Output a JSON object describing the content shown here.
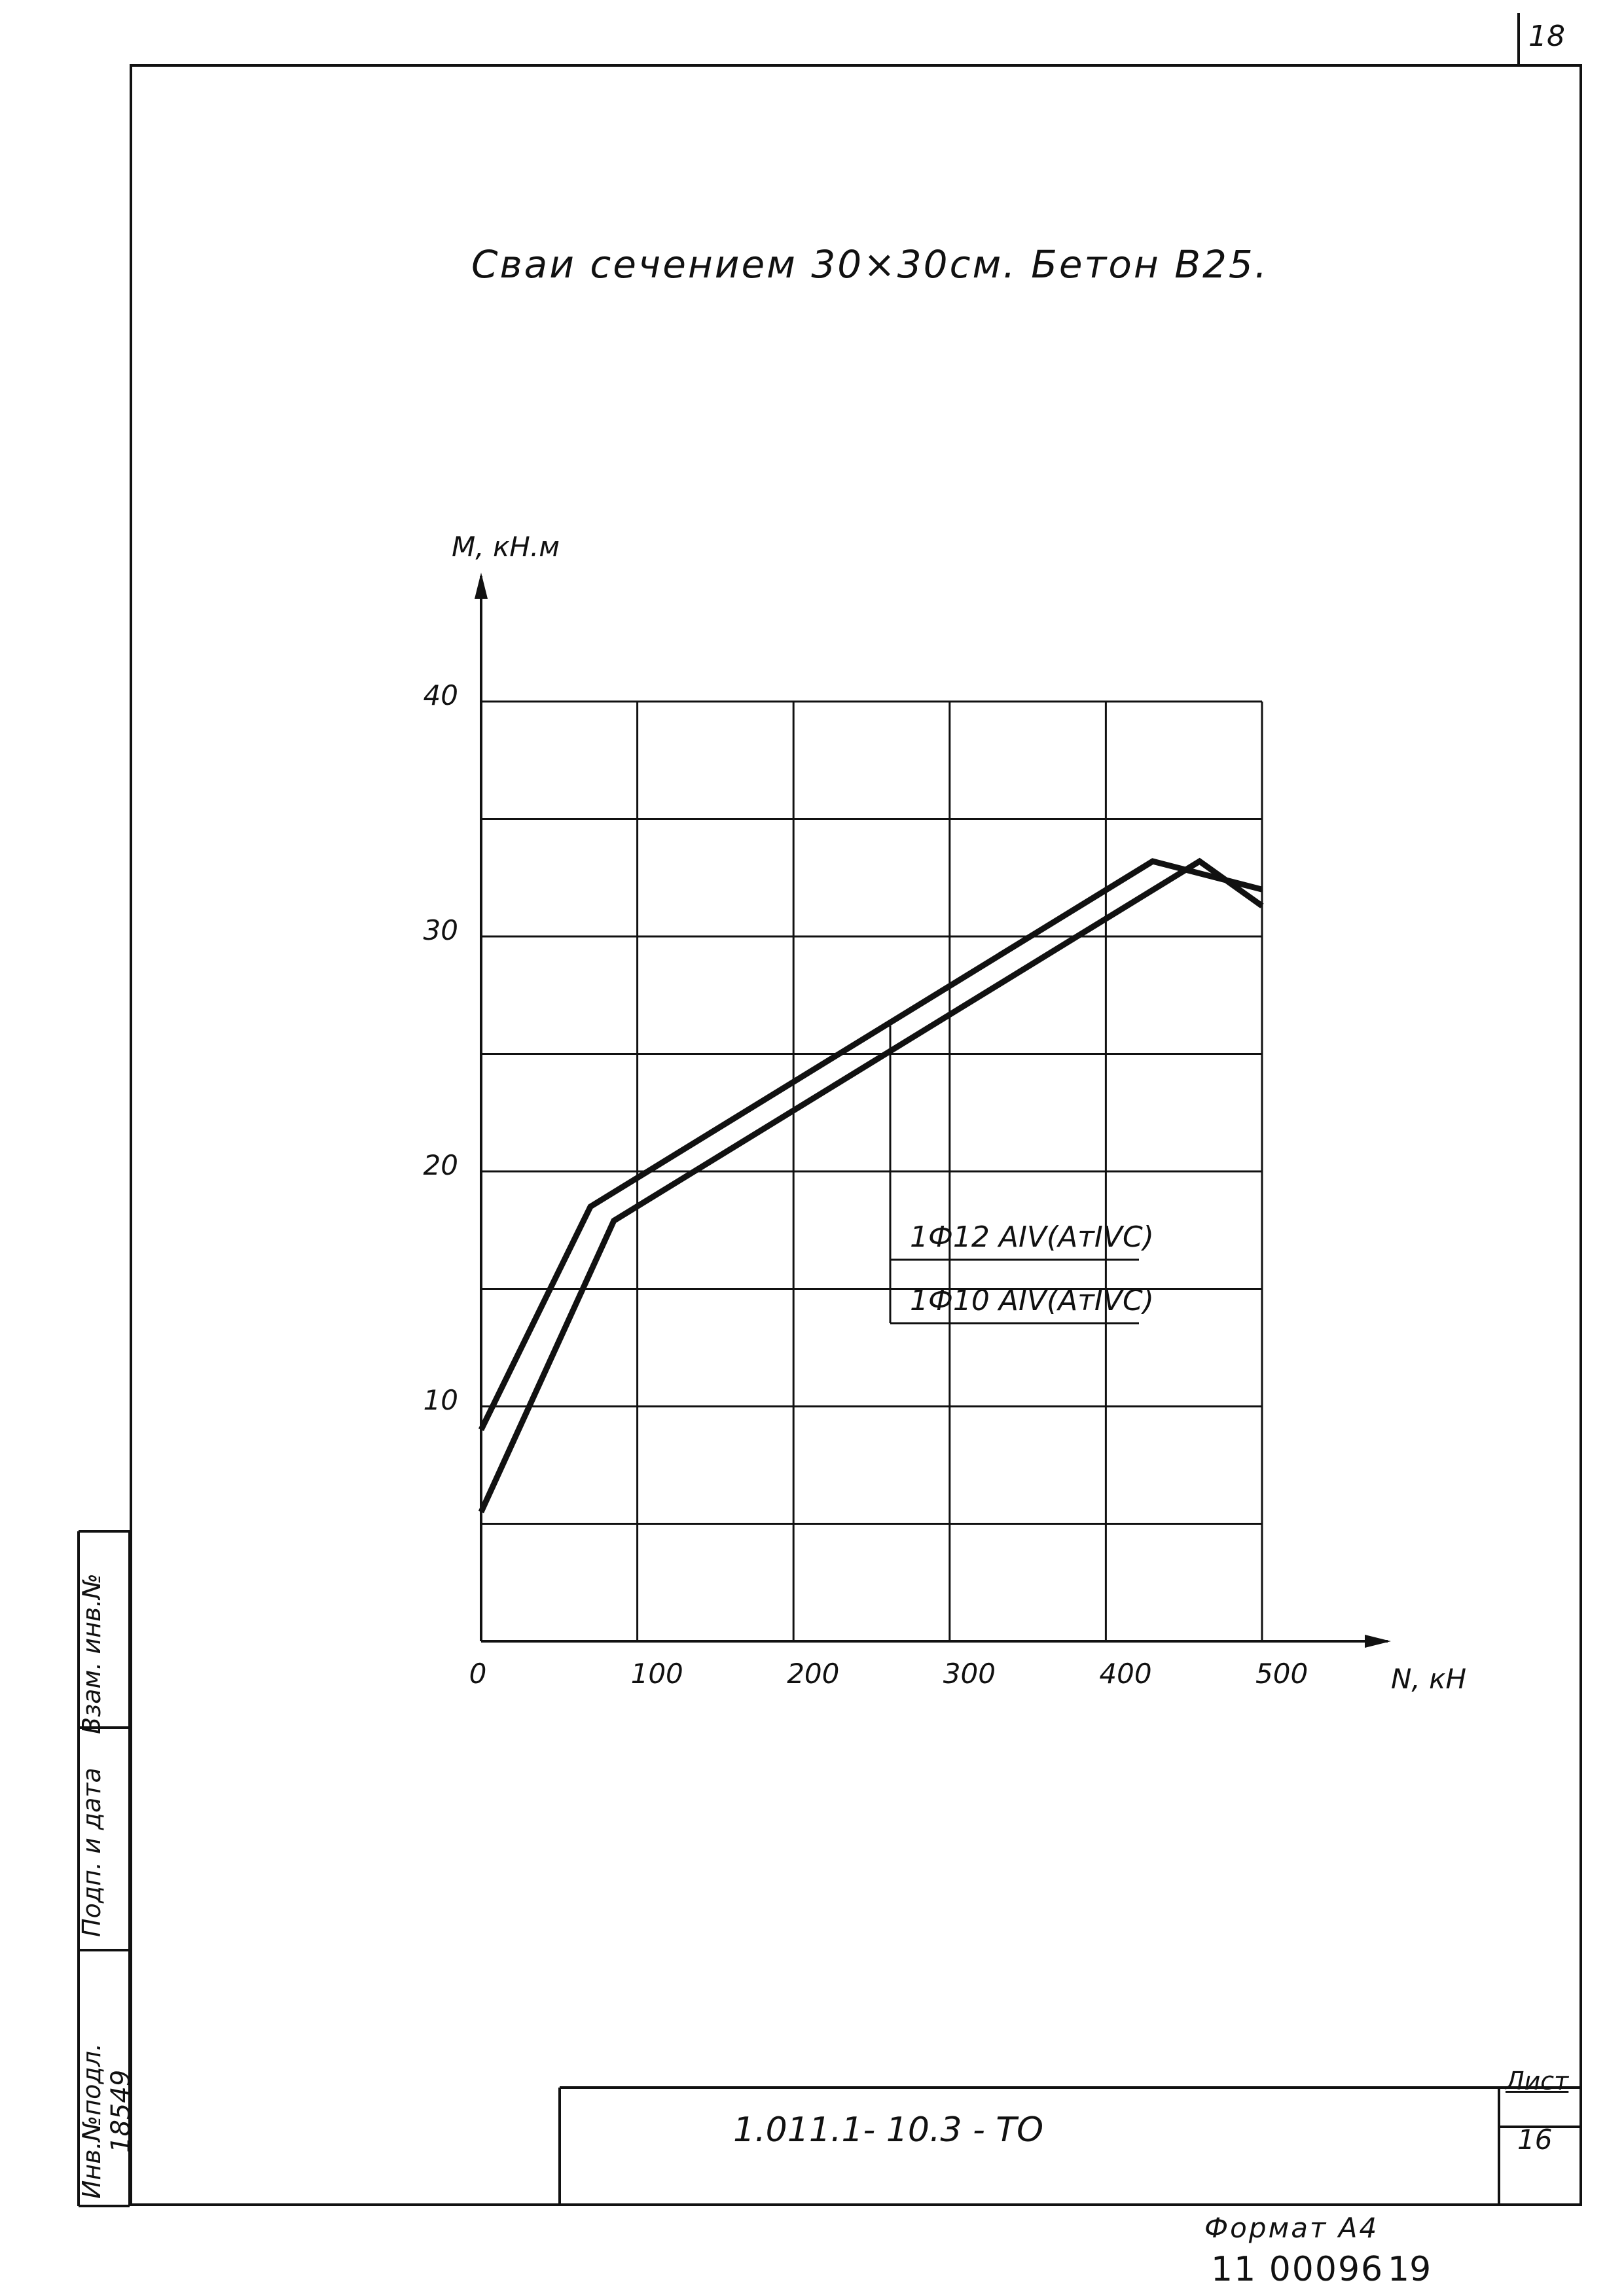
{
  "sheet_top_number": "18",
  "title": "Сваи сечением 30×30см. Бетон В25.",
  "chart_data": {
    "type": "line",
    "xlabel": "N, кН",
    "ylabel": "М, кН.м",
    "xlim": [
      0,
      500
    ],
    "ylim": [
      0,
      40
    ],
    "x_ticks": [
      0,
      100,
      200,
      300,
      400,
      500
    ],
    "x_tick_labels": [
      "0",
      "100",
      "200",
      "300",
      "400",
      "500"
    ],
    "y_ticks": [
      10,
      20,
      30,
      40
    ],
    "y_tick_labels": [
      "10",
      "20",
      "30",
      "40"
    ],
    "grid": true,
    "series": [
      {
        "name": "1Ф12 АIV(АтIVC)",
        "x": [
          0,
          70,
          430,
          500
        ],
        "y": [
          9,
          18.5,
          33.2,
          32
        ]
      },
      {
        "name": "1Ф10 АIV(АтIVC)",
        "x": [
          0,
          85,
          460,
          500
        ],
        "y": [
          5.5,
          17.9,
          33.2,
          31.3
        ]
      }
    ]
  },
  "stamp": {
    "inv_podl_label": "Инв.№подл.",
    "podp_data_label": "Подп. и дата",
    "vzam_inv_label": "Взам. инв.№",
    "inv_number": "18549"
  },
  "title_block": {
    "document_code": "1.011.1- 10.3 -   ТО",
    "sheet_label": "Лист",
    "sheet_number": "16"
  },
  "format_label": "Формат А4",
  "archive_number": "11 00096",
  "archive_page": "19"
}
